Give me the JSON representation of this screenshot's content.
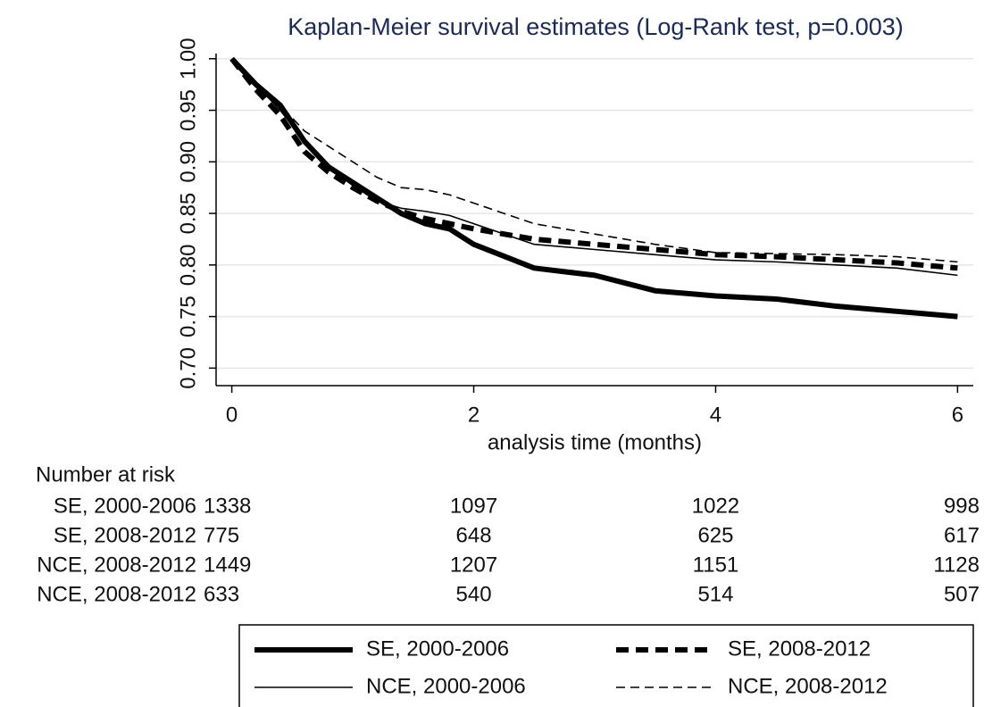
{
  "chart_data": {
    "type": "line",
    "title": "Kaplan-Meier survival estimates (Log-Rank test, p=0.003)",
    "x_label": "analysis time (months)",
    "x": [
      0,
      0.2,
      0.4,
      0.6,
      0.8,
      1.0,
      1.2,
      1.4,
      1.6,
      1.8,
      2.0,
      2.5,
      3.0,
      3.5,
      4.0,
      4.5,
      5.0,
      5.5,
      6.0
    ],
    "series": [
      {
        "name": "SE, 2000-2006",
        "color": "#000000",
        "line_width": 6,
        "dashed": false,
        "values": [
          1,
          0.975,
          0.955,
          0.92,
          0.895,
          0.88,
          0.865,
          0.85,
          0.84,
          0.835,
          0.82,
          0.797,
          0.79,
          0.775,
          0.77,
          0.767,
          0.76,
          0.755,
          0.75
        ]
      },
      {
        "name": "SE, 2008-2012",
        "color": "#000000",
        "line_width": 6,
        "dashed": true,
        "values": [
          1,
          0.97,
          0.945,
          0.91,
          0.89,
          0.875,
          0.862,
          0.852,
          0.845,
          0.84,
          0.835,
          0.825,
          0.82,
          0.815,
          0.81,
          0.808,
          0.805,
          0.802,
          0.797
        ]
      },
      {
        "name": "NCE, 2000-2006",
        "color": "#000000",
        "line_width": 1.6,
        "dashed": false,
        "values": [
          1,
          0.975,
          0.95,
          0.92,
          0.895,
          0.877,
          0.862,
          0.855,
          0.852,
          0.848,
          0.84,
          0.82,
          0.815,
          0.81,
          0.805,
          0.803,
          0.8,
          0.797,
          0.79
        ]
      },
      {
        "name": "NCE, 2008-2012",
        "color": "#000000",
        "line_width": 1.6,
        "dashed": true,
        "values": [
          1,
          0.975,
          0.955,
          0.93,
          0.915,
          0.9,
          0.885,
          0.875,
          0.873,
          0.868,
          0.86,
          0.84,
          0.83,
          0.82,
          0.812,
          0.811,
          0.81,
          0.808,
          0.803
        ]
      }
    ],
    "xlim": [
      -0.13,
      6.13
    ],
    "xticks": [
      0,
      2,
      4,
      6
    ],
    "ylim": [
      0.683,
      1.005
    ],
    "yticks": [
      {
        "value": 0.7,
        "label": "0.70"
      },
      0.75,
      {
        "value": 0.8,
        "label": "0.80"
      },
      0.85,
      {
        "value": 0.9,
        "label": "0.90"
      },
      0.95,
      {
        "value": 1,
        "label": "1.00"
      }
    ],
    "grid": true,
    "risk_table": {
      "title": "Number at risk",
      "times": [
        0,
        2,
        4,
        6
      ],
      "rows": [
        {
          "label": "SE, 2000-2006",
          "counts": [
            "1338",
            "1097",
            "1022",
            "998"
          ]
        },
        {
          "label": "SE, 2008-2012",
          "counts": [
            "775",
            "648",
            "625",
            "617"
          ]
        },
        {
          "label": "NCE, 2008-2012",
          "counts": [
            "1449",
            "1207",
            "1151",
            "1128"
          ]
        },
        {
          "label": "NCE, 2008-2012",
          "counts": [
            "633",
            "540",
            "514",
            "507"
          ]
        }
      ]
    }
  }
}
